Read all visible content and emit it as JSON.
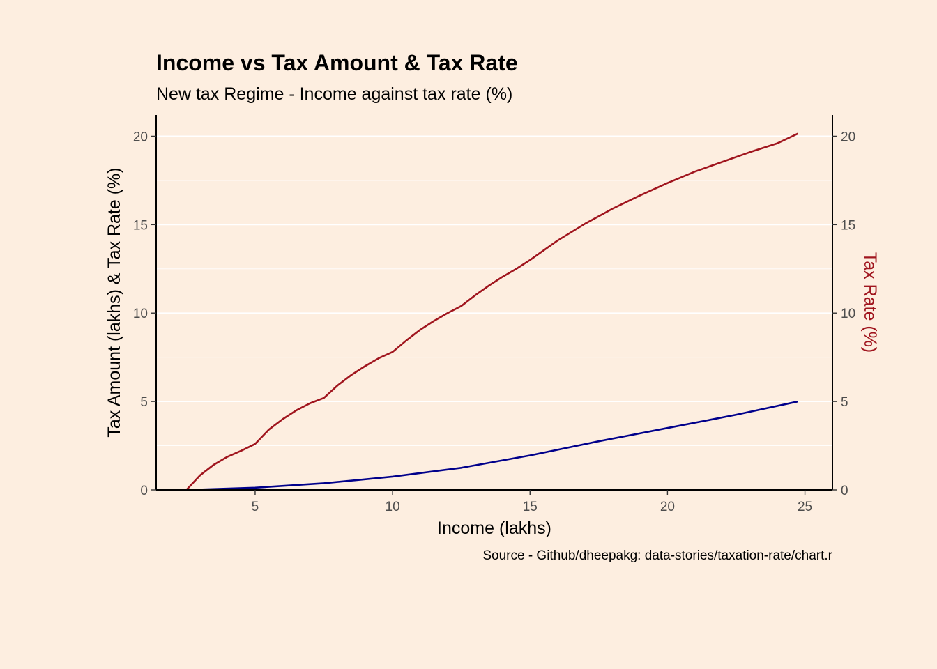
{
  "chart_data": {
    "type": "line",
    "title": "Income vs Tax Amount & Tax Rate",
    "subtitle": "New tax Regime - Income against tax rate (%)",
    "xlabel": "Income (lakhs)",
    "ylabel": "Tax Amount (lakhs) & Tax Rate (%)",
    "y2label": "Tax Rate (%)",
    "caption": "Source - Github/dheepakg: data-stories/taxation-rate/chart.r",
    "xlim": [
      1.4,
      26.0
    ],
    "ylim": [
      0,
      21.2
    ],
    "xticks": [
      5,
      10,
      15,
      20,
      25
    ],
    "yticks": [
      0,
      5,
      10,
      15,
      20
    ],
    "grid": true,
    "series": [
      {
        "name": "Tax Rate (%)",
        "color": "#A0151E",
        "x": [
          2.5,
          3.0,
          3.5,
          4.0,
          4.5,
          5.0,
          5.5,
          6.0,
          6.5,
          7.0,
          7.5,
          8.0,
          8.5,
          9.0,
          9.5,
          10.0,
          10.5,
          11.0,
          11.5,
          12.0,
          12.5,
          13.0,
          13.5,
          14.0,
          14.5,
          15.0,
          16.0,
          17.0,
          18.0,
          19.0,
          20.0,
          21.0,
          22.0,
          23.0,
          24.0,
          24.75
        ],
        "values": [
          0.0,
          0.83,
          1.43,
          1.88,
          2.22,
          2.6,
          3.41,
          4.0,
          4.5,
          4.9,
          5.2,
          5.91,
          6.5,
          7.0,
          7.45,
          7.8,
          8.45,
          9.05,
          9.55,
          10.0,
          10.4,
          11.0,
          11.55,
          12.05,
          12.5,
          13.0,
          14.1,
          15.05,
          15.9,
          16.65,
          17.35,
          18.0,
          18.55,
          19.1,
          19.6,
          20.15
        ]
      },
      {
        "name": "Tax Amount (lakhs)",
        "color": "#00008B",
        "x": [
          2.5,
          5.0,
          7.5,
          10.0,
          12.5,
          15.0,
          17.5,
          20.0,
          22.5,
          24.75
        ],
        "values": [
          0.0,
          0.125,
          0.375,
          0.75,
          1.25,
          1.95,
          2.75,
          3.5,
          4.25,
          5.0
        ]
      }
    ]
  }
}
